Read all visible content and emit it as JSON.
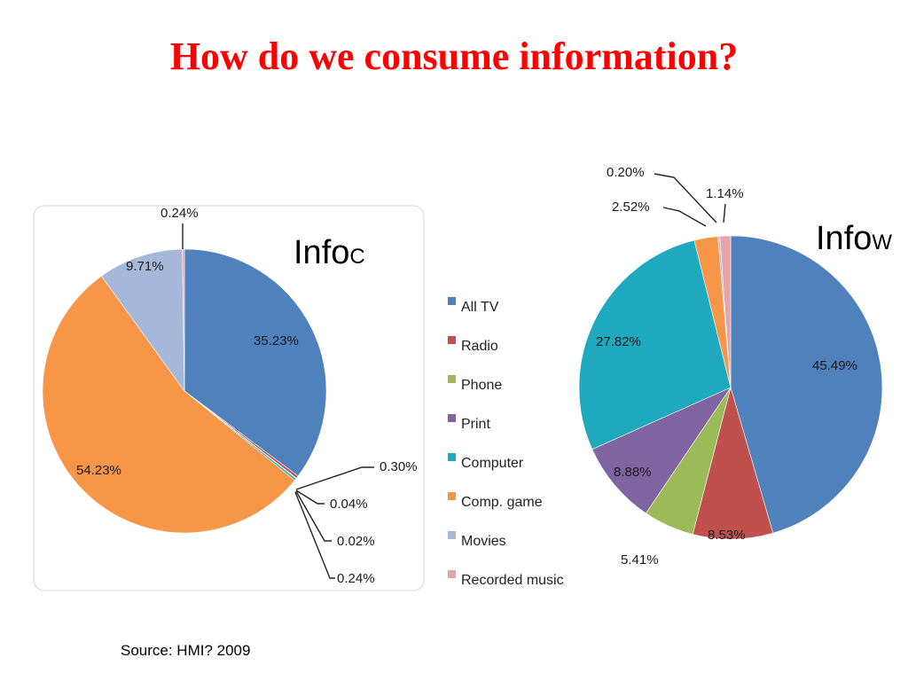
{
  "title": "How do we consume information?",
  "source": "Source: HMI? 2009",
  "legend": [
    {
      "name": "All TV",
      "color": "#4f81bd"
    },
    {
      "name": "Radio",
      "color": "#c0504d"
    },
    {
      "name": "Phone",
      "color": "#9bbb59"
    },
    {
      "name": "Print",
      "color": "#8064a2"
    },
    {
      "name": "Computer",
      "color": "#1fa9be"
    },
    {
      "name": "Comp. game",
      "color": "#f79646"
    },
    {
      "name": "Movies",
      "color": "#a5b8da"
    },
    {
      "name": "Recorded music",
      "color": "#e6a4a9"
    }
  ],
  "chart_data": [
    {
      "type": "pie",
      "title_main": "Info",
      "title_sub": "C",
      "slices": [
        {
          "name": "All TV",
          "value": 35.23,
          "label": "35.23%"
        },
        {
          "name": "Radio",
          "value": 0.3,
          "label": "0.30%"
        },
        {
          "name": "Phone",
          "value": 0.04,
          "label": "0.04%"
        },
        {
          "name": "Print",
          "value": 0.02,
          "label": "0.02%"
        },
        {
          "name": "Computer",
          "value": 0.24,
          "label": "0.24%"
        },
        {
          "name": "Comp. game",
          "value": 54.23,
          "label": "54.23%"
        },
        {
          "name": "Movies",
          "value": 9.71,
          "label": "9.71%"
        },
        {
          "name": "Recorded music",
          "value": 0.24,
          "label": "0.24%"
        }
      ]
    },
    {
      "type": "pie",
      "title_main": "Info",
      "title_sub": "W",
      "slices": [
        {
          "name": "All TV",
          "value": 45.49,
          "label": "45.49%"
        },
        {
          "name": "Radio",
          "value": 8.53,
          "label": "8.53%"
        },
        {
          "name": "Phone",
          "value": 5.41,
          "label": "5.41%"
        },
        {
          "name": "Print",
          "value": 8.88,
          "label": "8.88%"
        },
        {
          "name": "Computer",
          "value": 27.82,
          "label": "27.82%"
        },
        {
          "name": "Comp. game",
          "value": 2.52,
          "label": "2.52%"
        },
        {
          "name": "Movies",
          "value": 0.2,
          "label": "0.20%"
        },
        {
          "name": "Recorded music",
          "value": 1.14,
          "label": "1.14%"
        }
      ]
    }
  ]
}
